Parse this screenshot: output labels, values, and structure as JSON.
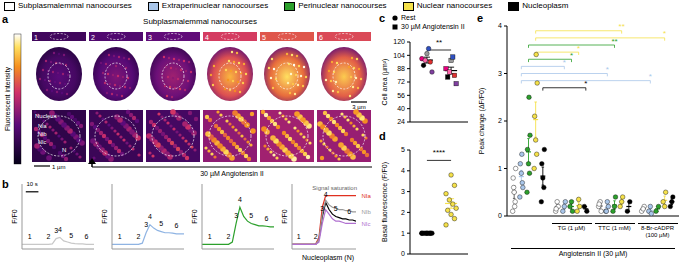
{
  "panel_a": {
    "title": "a",
    "header": "Subplasmalemmal nanocourses",
    "colorbar_label": "Fluorescent intensity",
    "frames": [
      "1",
      "2",
      "3",
      "4",
      "5",
      "6"
    ],
    "nucleus_label": "Nucleus",
    "region_labels": [
      "NIa",
      "NIb",
      "NIc"
    ],
    "nucleoplasm_label": "N",
    "scale_bars": [
      "3 µm",
      "1 µm"
    ],
    "stimulus": "30 µM Angiotensin II"
  },
  "chart_data": [
    {
      "type": "line",
      "title": "b",
      "ylabel": "F/F0",
      "tick_labels": false,
      "x": [
        0,
        3,
        6,
        9,
        12,
        15,
        18,
        21,
        24,
        27,
        30,
        33,
        36,
        39,
        42,
        45,
        48,
        51,
        54,
        57
      ],
      "xlim": [
        0,
        57
      ],
      "ylim": [
        0.8,
        3.6
      ],
      "scale_bar": {
        "label": "10 s",
        "length": 10
      },
      "series": [
        {
          "color": "#c8c8c8",
          "values": [
            1,
            1,
            1,
            1,
            1,
            1,
            1,
            1,
            1.02,
            1.25,
            1.3,
            1.15,
            1.1,
            1.05,
            1.03,
            1.02,
            1.02,
            1,
            1,
            1
          ]
        }
      ],
      "annotations": [
        {
          "text": "1",
          "x": 6,
          "y": 1
        },
        {
          "text": "2",
          "x": 21,
          "y": 1
        },
        {
          "text": "3",
          "x": 27,
          "y": 1.25
        },
        {
          "text": "4",
          "x": 30,
          "y": 1.3
        },
        {
          "text": "5",
          "x": 39,
          "y": 1.05
        },
        {
          "text": "6",
          "x": 51,
          "y": 1
        }
      ]
    },
    {
      "type": "line",
      "ylabel": "F/F0",
      "tick_labels": false,
      "x": [
        0,
        3,
        6,
        9,
        12,
        15,
        18,
        21,
        24,
        27,
        30,
        33,
        36,
        39,
        42,
        45,
        48,
        51,
        54,
        57
      ],
      "xlim": [
        0,
        57
      ],
      "ylim": [
        0.8,
        3.6
      ],
      "series": [
        {
          "color": "#8fb4e3",
          "values": [
            1,
            1,
            1,
            1,
            1,
            1,
            1,
            1,
            1.05,
            1.5,
            1.85,
            1.7,
            1.6,
            1.55,
            1.5,
            1.5,
            1.48,
            1.45,
            1.45,
            1.45
          ]
        }
      ],
      "annotations": [
        {
          "text": "1",
          "x": 6,
          "y": 1
        },
        {
          "text": "2",
          "x": 21,
          "y": 1
        },
        {
          "text": "3",
          "x": 27,
          "y": 1.5
        },
        {
          "text": "4",
          "x": 30,
          "y": 1.85
        },
        {
          "text": "5",
          "x": 39,
          "y": 1.55
        },
        {
          "text": "6",
          "x": 51,
          "y": 1.45
        }
      ]
    },
    {
      "type": "line",
      "ylabel": "F/F0",
      "tick_labels": false,
      "x": [
        0,
        3,
        6,
        9,
        12,
        15,
        18,
        21,
        24,
        27,
        30,
        33,
        36,
        39,
        42,
        45,
        48,
        51,
        54,
        57
      ],
      "xlim": [
        0,
        57
      ],
      "ylim": [
        0.8,
        3.6
      ],
      "series": [
        {
          "color": "#2ca02c",
          "values": [
            1,
            1,
            1,
            1,
            1,
            1,
            1,
            1,
            1.1,
            1.9,
            2.6,
            2.2,
            2.0,
            1.9,
            1.85,
            1.8,
            1.8,
            1.78,
            1.75,
            1.75
          ]
        }
      ],
      "annotations": [
        {
          "text": "1",
          "x": 6,
          "y": 1
        },
        {
          "text": "2",
          "x": 21,
          "y": 1
        },
        {
          "text": "3",
          "x": 27,
          "y": 1.9
        },
        {
          "text": "4",
          "x": 30,
          "y": 2.6
        },
        {
          "text": "5",
          "x": 39,
          "y": 1.9
        },
        {
          "text": "6",
          "x": 51,
          "y": 1.78
        }
      ]
    },
    {
      "type": "line",
      "ylabel": "F/F0",
      "xlabel": "Nucleoplasm (N)",
      "tick_labels": false,
      "x": [
        0,
        3,
        6,
        9,
        12,
        15,
        18,
        21,
        24,
        27,
        30,
        33,
        36,
        39,
        42,
        45,
        48,
        51,
        54,
        57
      ],
      "xlim": [
        0,
        57
      ],
      "ylim": [
        0.8,
        3.6
      ],
      "series": [
        {
          "color": "#000000",
          "values": [
            1,
            1,
            1,
            1,
            1,
            1,
            1,
            1,
            1.2,
            2.2,
            2.8,
            2.5,
            2.3,
            2.2,
            2.15,
            2.1,
            2.1,
            2.05,
            2.05,
            2.0
          ]
        },
        {
          "name": "NIa",
          "color": "#e03020",
          "values": [
            1,
            1,
            1,
            1,
            1,
            1,
            1,
            1,
            1.3,
            2.6,
            3.1,
            3.1,
            3.1,
            3.1,
            3.1,
            3.1,
            3.1,
            3.1,
            3.1,
            3.1
          ]
        },
        {
          "name": "NIb",
          "color": "#999999",
          "values": [
            1,
            1,
            1,
            1,
            1,
            1,
            1,
            1,
            1.2,
            2.3,
            2.9,
            2.7,
            2.6,
            2.55,
            2.5,
            2.5,
            2.45,
            2.45,
            2.4,
            2.4
          ]
        },
        {
          "name": "NIc",
          "color": "#b070d0",
          "values": [
            1,
            1,
            1,
            1,
            1,
            1,
            1,
            1,
            1.1,
            1.9,
            2.5,
            2.3,
            2.1,
            2.0,
            2.0,
            1.95,
            1.9,
            1.9,
            1.9,
            1.9
          ]
        }
      ],
      "annotations": [
        {
          "text": "1",
          "x": 6,
          "y": 1
        },
        {
          "text": "2",
          "x": 21,
          "y": 1
        },
        {
          "text": "3",
          "x": 27,
          "y": 2.2
        },
        {
          "text": "4",
          "x": 30,
          "y": 2.8
        },
        {
          "text": "5",
          "x": 39,
          "y": 2.2
        },
        {
          "text": "6",
          "x": 51,
          "y": 2.05
        },
        {
          "text": "Signal saturation",
          "x": 38,
          "y": 3.45
        }
      ]
    },
    {
      "type": "scatter",
      "title": "c",
      "ylabel": "Cell area (µm²)",
      "ylim": [
        24,
        120
      ],
      "yticks": [
        24,
        40,
        56,
        72,
        88,
        104,
        120
      ],
      "tick_labels": "y",
      "significance": "**",
      "series": [
        {
          "name": "Rest",
          "marker": "circle",
          "values": [
            100,
            96,
            106,
            92,
            84,
            112,
            98
          ],
          "colors": [
            "#e6007e",
            "#e03030",
            "#999999",
            "#000000",
            "#8040a0",
            "#3050c0",
            "#ff66aa"
          ],
          "mean": 98.3,
          "error": 3.5
        },
        {
          "name": "30 µM Angiotensin II",
          "marker": "square",
          "values": [
            88,
            80,
            98,
            78,
            70,
            102,
            84
          ],
          "colors": [
            "#e6007e",
            "#e03030",
            "#999999",
            "#000000",
            "#8040a0",
            "#3050c0",
            "#ff66aa"
          ],
          "mean": 85.7,
          "error": 4.1
        }
      ]
    },
    {
      "type": "scatter",
      "title": "d",
      "ylabel": "Basal fluorescence (F/F0)",
      "ylim": [
        0,
        5
      ],
      "yticks": [
        0,
        1,
        2,
        3,
        4,
        5
      ],
      "tick_labels": "y",
      "significance": "****",
      "series": [
        {
          "color": "#000000",
          "marker": "circle",
          "values": [
            1,
            1,
            1,
            1,
            1,
            1,
            1,
            1,
            1,
            1
          ],
          "mean": 1,
          "error": 0
        },
        {
          "color": "#f5e14a",
          "marker": "circle",
          "values": [
            1.4,
            1.7,
            1.9,
            2.1,
            2.2,
            2.4,
            2.6,
            2.9,
            3.3,
            3.8
          ],
          "mean": 2.43,
          "error": 0.23
        }
      ]
    },
    {
      "type": "scatter",
      "title": "e",
      "ylabel": "Peak change (ΔF/F0)",
      "xlabel": "Angiotensin II (30 µM)",
      "ylim": [
        0,
        4
      ],
      "yticks": [
        0,
        1,
        2,
        3,
        4
      ],
      "tick_labels": "y",
      "groups": [
        null,
        "TG (1 µM)",
        "TTC (1 mM)",
        "8-Br-cADPR (100 µM)"
      ],
      "series": [
        {
          "name": "Subplasmalemmal nanocourses",
          "color": "#ffffff",
          "marker": "circle",
          "values": [
            [
              0.1,
              0.3,
              0.5,
              0.8,
              1.0,
              0.2,
              0.6
            ],
            [
              0.1,
              0.2,
              0.3,
              0.15
            ],
            [
              0.2,
              0.1,
              0.3,
              0.25
            ],
            [
              0.1,
              0.2,
              0.15
            ]
          ],
          "mean": [
            0.5,
            0.19,
            0.21,
            0.15
          ],
          "error": [
            0.13,
            0.04,
            0.04,
            0.03
          ]
        },
        {
          "name": "Extraperinuclear nanocourses",
          "color": "#a9c6ea",
          "marker": "circle",
          "values": [
            [
              0.4,
              0.7,
              0.9,
              1.1,
              0.6,
              1.3
            ],
            [
              0.1,
              0.3,
              0.2
            ],
            [
              0.1,
              0.2,
              0.3,
              0.1
            ],
            [
              0.1,
              0.05,
              0.2
            ]
          ],
          "mean": [
            0.83,
            0.2,
            0.18,
            0.12
          ],
          "error": [
            0.13,
            0.06,
            0.05,
            0.04
          ]
        },
        {
          "name": "Perinuclear nanocourses",
          "color": "#2ca02c",
          "marker": "circle",
          "values": [
            [
              0.5,
              0.9,
              1.1,
              1.4,
              1.7,
              2.5
            ],
            [
              0.2,
              0.1,
              0.3
            ],
            [
              0.1,
              0.4,
              0.2
            ],
            [
              0.1,
              0.2
            ]
          ],
          "mean": [
            1.35,
            0.2,
            0.23,
            0.15
          ],
          "error": [
            0.28,
            0.06,
            0.09,
            0.05
          ]
        },
        {
          "name": "Nuclear nanocourses",
          "color": "#f5e14a",
          "marker": "circle",
          "values": [
            [
              1.0,
              1.3,
              1.6,
              2.1,
              2.8,
              3.4
            ],
            [
              0.1,
              0.2,
              0.35
            ],
            [
              0.2,
              0.4,
              0.3
            ],
            [
              0.3,
              0.5,
              0.2
            ]
          ],
          "mean": [
            2.03,
            0.22,
            0.3,
            0.33
          ],
          "error": [
            0.37,
            0.07,
            0.06,
            0.09
          ]
        },
        {
          "name": "Nucleoplasm",
          "color": "#000000",
          "marker": "circle",
          "values": [
            [
              0.3,
              0.6,
              0.8,
              1.1,
              1.4
            ],
            [
              0.2,
              0.1
            ],
            [
              0.1,
              0.3
            ],
            [
              0.2,
              0.4,
              0.3
            ]
          ],
          "mean": [
            0.84,
            0.15,
            0.2,
            0.3
          ],
          "error": [
            0.19,
            0.05,
            0.1,
            0.06
          ]
        }
      ],
      "brackets": [
        {
          "series": 3,
          "group": 2,
          "text": "**"
        },
        {
          "series": 3,
          "group": 3,
          "text": "*"
        },
        {
          "series": 2,
          "group": 2,
          "text": "**"
        },
        {
          "series": 3,
          "group": 1,
          "text": "*"
        },
        {
          "series": 2,
          "group": 1,
          "text": "*"
        },
        {
          "series": 1,
          "group": 1,
          "text": "*"
        },
        {
          "series": 1,
          "group": 2,
          "text": "*"
        },
        {
          "series": 1,
          "group": 3,
          "text": "*"
        },
        {
          "series": 4,
          "group": 1,
          "text": "*"
        }
      ]
    }
  ]
}
